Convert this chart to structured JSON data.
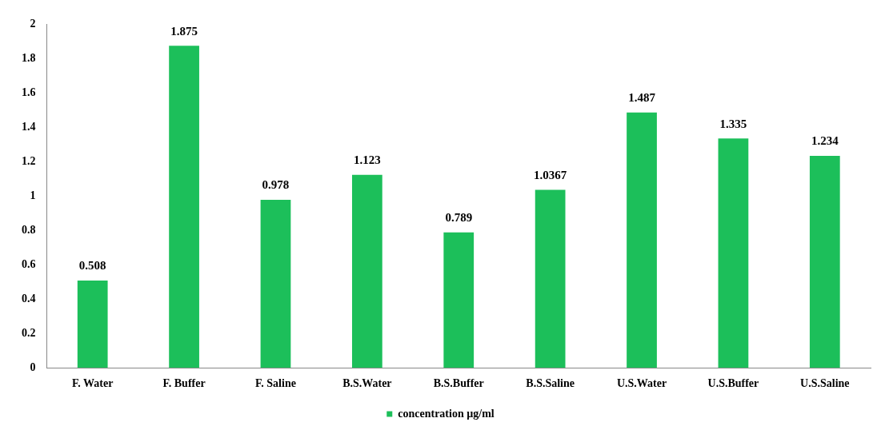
{
  "chart_data": {
    "type": "bar",
    "categories": [
      "F. Water",
      "F. Buffer",
      "F. Saline",
      "B.S.Water",
      "B.S.Buffer",
      "B.S.Saline",
      "U.S.Water",
      "U.S.Buffer",
      "U.S.Saline"
    ],
    "series": [
      {
        "name": "concentration µg/ml",
        "color": "#1cbf5a",
        "values": [
          0.508,
          1.875,
          0.978,
          1.123,
          0.789,
          1.0367,
          1.487,
          1.335,
          1.234
        ]
      }
    ],
    "ylim": [
      0,
      2
    ],
    "yticks": [
      0,
      0.2,
      0.4,
      0.6,
      0.8,
      1,
      1.2,
      1.4,
      1.6,
      1.8,
      2
    ],
    "grid": false,
    "legend": "bottom",
    "data_labels": true
  }
}
